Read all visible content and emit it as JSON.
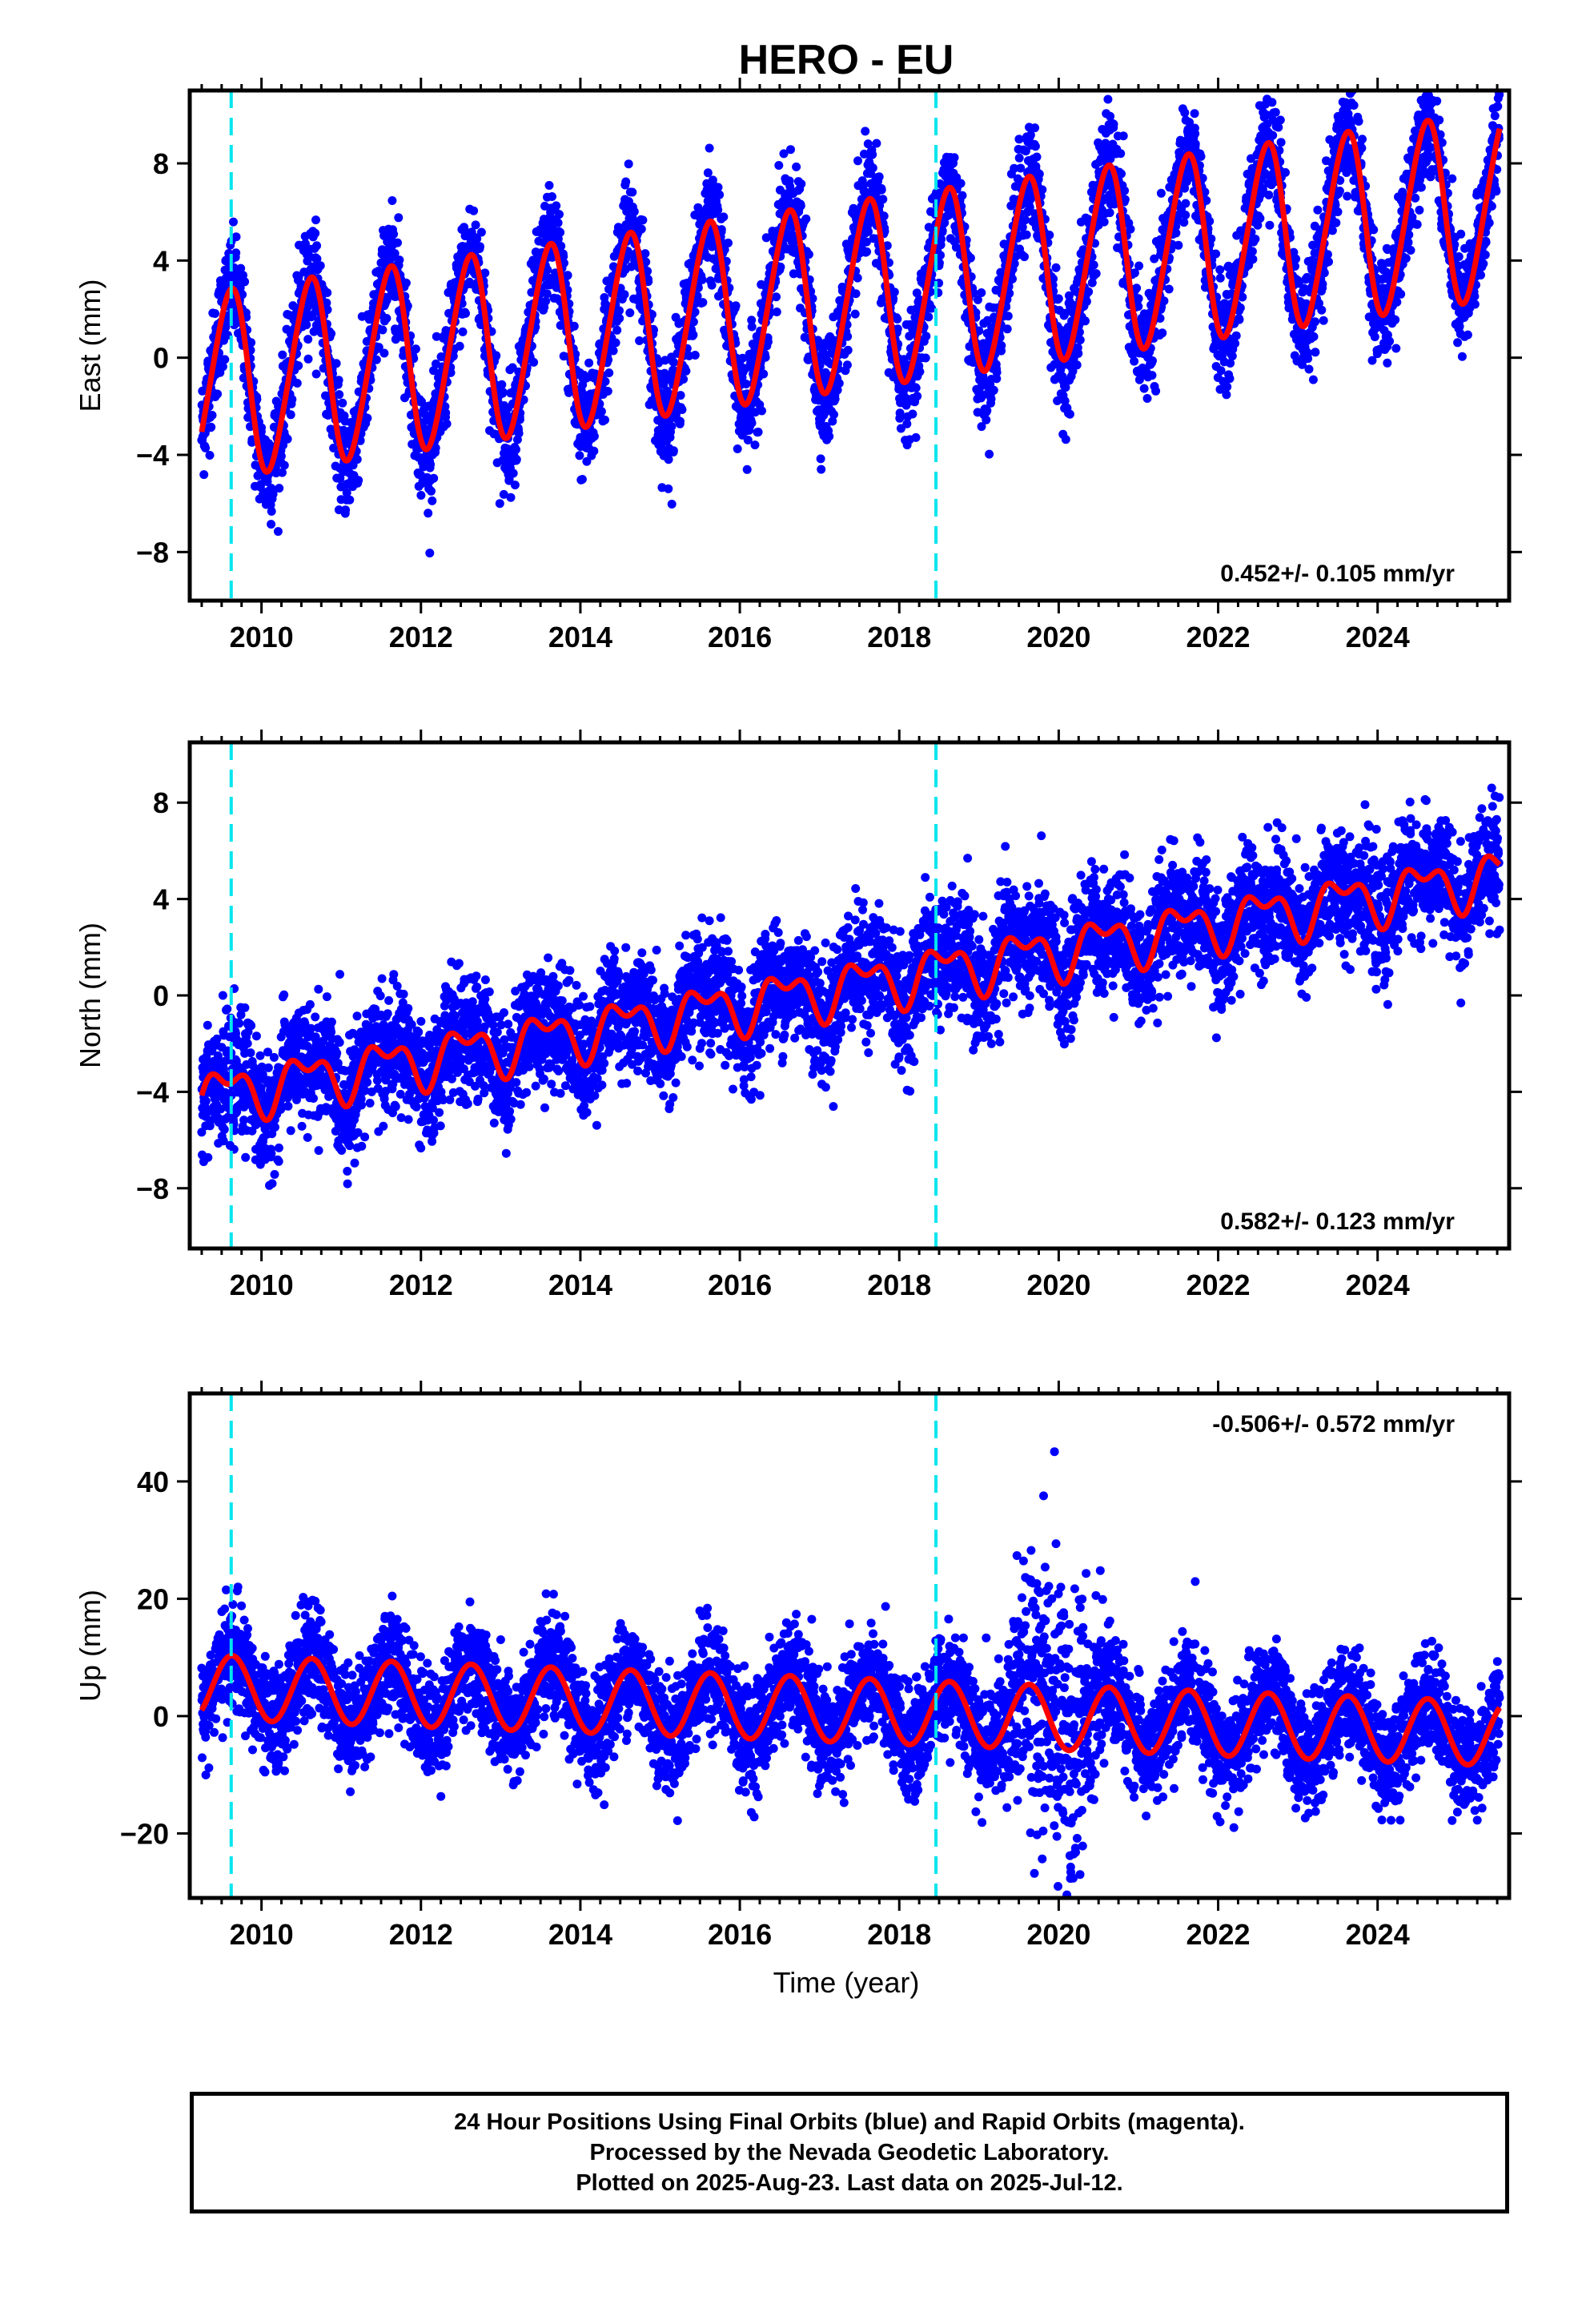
{
  "title": "HERO - EU",
  "xlabel": "Time (year)",
  "colors": {
    "data": "#0000ff",
    "model": "#ff0000",
    "offset": "#00e5ee",
    "frame": "#000000"
  },
  "offset_lines": [
    2009.62,
    2018.46
  ],
  "chart_data": [
    {
      "type": "scatter",
      "component": "East",
      "ylabel": "East (mm)",
      "xlim": [
        2009.1,
        2025.65
      ],
      "ylim": [
        -10,
        11
      ],
      "xticks": [
        2010,
        2012,
        2014,
        2016,
        2018,
        2020,
        2022,
        2024
      ],
      "yticks": [
        -8,
        -4,
        0,
        4,
        8
      ],
      "rate_label": "0.452+/- 0.105 mm/yr",
      "rate_position": "bottom-right",
      "series": [
        {
          "role": "daily positions",
          "color": "#0000ff",
          "start": 2009.25,
          "end": 2025.53,
          "trend_start": -1.2,
          "trend_end": 6.3,
          "annual_amplitude": 3.8,
          "annual_phase": 0.35,
          "semiannual_amplitude": 0.4,
          "semiannual_phase": 0.1,
          "scatter": 1.1
        },
        {
          "role": "model fit",
          "color": "#ff0000",
          "trend_start": -1.2,
          "trend_end": 6.3,
          "annual_amplitude": 3.8,
          "annual_phase": 0.35,
          "semiannual_amplitude": 0.4,
          "semiannual_phase": 0.1
        }
      ]
    },
    {
      "type": "scatter",
      "component": "North",
      "ylabel": "North (mm)",
      "xlim": [
        2009.1,
        2025.65
      ],
      "ylim": [
        -10.5,
        10.5
      ],
      "xticks": [
        2010,
        2012,
        2014,
        2016,
        2018,
        2020,
        2022,
        2024
      ],
      "yticks": [
        -8,
        -4,
        0,
        4,
        8
      ],
      "rate_label": "0.582+/- 0.123 mm/yr",
      "rate_position": "bottom-right",
      "series": [
        {
          "role": "daily positions",
          "color": "#0000ff",
          "start": 2009.25,
          "end": 2025.53,
          "trend_start": -4.2,
          "trend_end": 5.0,
          "annual_amplitude": 0.9,
          "annual_phase": 0.3,
          "semiannual_amplitude": 0.55,
          "semiannual_phase": 0.2,
          "scatter": 1.2
        },
        {
          "role": "model fit",
          "color": "#ff0000",
          "trend_start": -4.2,
          "trend_end": 5.0,
          "annual_amplitude": 0.9,
          "annual_phase": 0.3,
          "semiannual_amplitude": 0.55,
          "semiannual_phase": 0.2
        }
      ]
    },
    {
      "type": "scatter",
      "component": "Up",
      "ylabel": "Up (mm)",
      "xlim": [
        2009.1,
        2025.65
      ],
      "ylim": [
        -31,
        55
      ],
      "xticks": [
        2010,
        2012,
        2014,
        2016,
        2018,
        2020,
        2022,
        2024
      ],
      "yticks": [
        -20,
        0,
        20,
        40
      ],
      "rate_label": "-0.506+/- 0.572 mm/yr",
      "rate_position": "top-right",
      "series": [
        {
          "role": "daily positions",
          "color": "#0000ff",
          "start": 2009.25,
          "end": 2025.53,
          "trend_start": 5.0,
          "trend_end": -3.0,
          "annual_amplitude": 5.5,
          "annual_phase": 0.38,
          "semiannual_amplitude": 0.0,
          "semiannual_phase": 0.0,
          "scatter": 4.5,
          "noisy_interval": [
            2018.5,
            2020.7
          ]
        },
        {
          "role": "model fit",
          "color": "#ff0000",
          "trend_start": 5.0,
          "trend_end": -3.0,
          "annual_amplitude": 5.5,
          "annual_phase": 0.38,
          "semiannual_amplitude": 0.0,
          "semiannual_phase": 0.0
        }
      ]
    }
  ],
  "caption": {
    "line1": "24 Hour Positions Using Final Orbits (blue) and Rapid Orbits (magenta).",
    "line2": "Processed by the Nevada Geodetic Laboratory.",
    "line3": "Plotted on 2025-Aug-23. Last data on 2025-Jul-12."
  }
}
